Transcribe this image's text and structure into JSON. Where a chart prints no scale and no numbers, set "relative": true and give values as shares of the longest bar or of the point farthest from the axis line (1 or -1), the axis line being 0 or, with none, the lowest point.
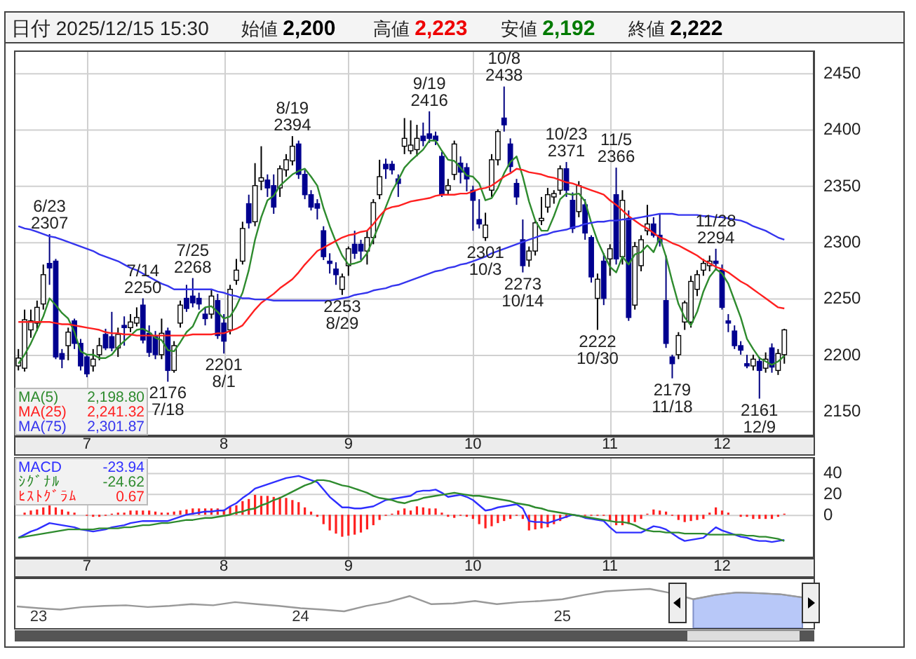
{
  "chart_data": [
    {
      "type": "candlestick",
      "title": "日付 2025/12/15 15:30",
      "categories": [
        null,
        null,
        null,
        null,
        null,
        null,
        null,
        null,
        null,
        null,
        null,
        "7",
        null,
        null,
        null,
        null,
        null,
        null,
        null,
        null,
        null,
        null,
        null,
        null,
        null,
        null,
        null,
        null,
        null,
        null,
        null,
        null,
        null,
        "8",
        null,
        null,
        null,
        null,
        null,
        null,
        null,
        null,
        null,
        null,
        null,
        null,
        null,
        null,
        null,
        null,
        null,
        null,
        null,
        "9",
        null,
        null,
        null,
        null,
        null,
        null,
        null,
        null,
        null,
        null,
        null,
        null,
        null,
        null,
        null,
        null,
        null,
        null,
        null,
        "10",
        null,
        null,
        null,
        null,
        null,
        null,
        null,
        null,
        null,
        null,
        null,
        null,
        null,
        null,
        null,
        null,
        null,
        null,
        null,
        null,
        null,
        "11",
        null,
        null,
        null,
        null,
        null,
        null,
        null,
        null,
        null,
        null,
        null,
        null,
        null,
        null,
        null,
        null,
        null,
        "12",
        null,
        null,
        null,
        null,
        null,
        null,
        null,
        null,
        null,
        null
      ],
      "ohlc": [
        [
          2190,
          2205,
          2186,
          2197
        ],
        [
          2188,
          2240,
          2185,
          2231
        ],
        [
          2222,
          2240,
          2215,
          2230
        ],
        [
          2228,
          2248,
          2221,
          2242
        ],
        [
          2245,
          2280,
          2240,
          2271
        ],
        [
          2281,
          2307,
          2262,
          2277
        ],
        [
          2283,
          2285,
          2196,
          2198
        ],
        [
          2201,
          2205,
          2188,
          2196
        ],
        [
          2208,
          2224,
          2195,
          2220
        ],
        [
          2230,
          2232,
          2205,
          2210
        ],
        [
          2210,
          2214,
          2186,
          2190
        ],
        [
          2198,
          2200,
          2180,
          2183
        ],
        [
          2190,
          2205,
          2185,
          2196
        ],
        [
          2200,
          2215,
          2195,
          2208
        ],
        [
          2218,
          2223,
          2204,
          2206
        ],
        [
          2216,
          2238,
          2203,
          2206
        ],
        [
          2206,
          2224,
          2198,
          2218
        ],
        [
          2226,
          2234,
          2208,
          2224
        ],
        [
          2224,
          2236,
          2220,
          2229
        ],
        [
          2228,
          2242,
          2225,
          2233
        ],
        [
          2244,
          2250,
          2210,
          2213
        ],
        [
          2219,
          2226,
          2198,
          2202
        ],
        [
          2216,
          2221,
          2196,
          2200
        ],
        [
          2200,
          2232,
          2196,
          2219
        ],
        [
          2221,
          2224,
          2176,
          2186
        ],
        [
          2186,
          2212,
          2184,
          2208
        ],
        [
          2228,
          2248,
          2224,
          2244
        ],
        [
          2250,
          2262,
          2238,
          2241
        ],
        [
          2252,
          2268,
          2242,
          2246
        ],
        [
          2250,
          2255,
          2240,
          2245
        ],
        [
          2236,
          2242,
          2226,
          2232
        ],
        [
          2236,
          2258,
          2232,
          2252
        ],
        [
          2248,
          2254,
          2214,
          2217
        ],
        [
          2228,
          2236,
          2201,
          2212
        ],
        [
          2222,
          2262,
          2218,
          2258
        ],
        [
          2266,
          2285,
          2262,
          2275
        ],
        [
          2283,
          2318,
          2280,
          2312
        ],
        [
          2334,
          2342,
          2312,
          2317
        ],
        [
          2318,
          2370,
          2314,
          2350
        ],
        [
          2354,
          2385,
          2346,
          2357
        ],
        [
          2355,
          2360,
          2340,
          2348
        ],
        [
          2350,
          2360,
          2325,
          2331
        ],
        [
          2348,
          2368,
          2340,
          2365
        ],
        [
          2364,
          2378,
          2358,
          2373
        ],
        [
          2372,
          2394,
          2368,
          2385
        ],
        [
          2387,
          2390,
          2356,
          2360
        ],
        [
          2360,
          2364,
          2338,
          2342
        ],
        [
          2342,
          2346,
          2328,
          2331
        ],
        [
          2334,
          2338,
          2320,
          2330
        ],
        [
          2310,
          2314,
          2284,
          2287
        ],
        [
          2283,
          2290,
          2272,
          2281
        ],
        [
          2276,
          2282,
          2262,
          2271
        ],
        [
          2258,
          2272,
          2253,
          2269
        ],
        [
          2279,
          2296,
          2270,
          2294
        ],
        [
          2298,
          2310,
          2285,
          2290
        ],
        [
          2298,
          2302,
          2284,
          2292
        ],
        [
          2292,
          2310,
          2280,
          2304
        ],
        [
          2304,
          2338,
          2298,
          2335
        ],
        [
          2342,
          2373,
          2338,
          2358
        ],
        [
          2369,
          2374,
          2356,
          2365
        ],
        [
          2369,
          2372,
          2360,
          2364
        ],
        [
          2356,
          2360,
          2340,
          2352
        ],
        [
          2385,
          2410,
          2378,
          2392
        ],
        [
          2381,
          2408,
          2378,
          2386
        ],
        [
          2382,
          2404,
          2376,
          2392
        ],
        [
          2394,
          2406,
          2385,
          2390
        ],
        [
          2396,
          2416,
          2388,
          2392
        ],
        [
          2394,
          2398,
          2386,
          2390
        ],
        [
          2376,
          2380,
          2340,
          2342
        ],
        [
          2346,
          2356,
          2342,
          2350
        ],
        [
          2360,
          2390,
          2355,
          2387
        ],
        [
          2370,
          2376,
          2352,
          2362
        ],
        [
          2366,
          2370,
          2345,
          2356
        ],
        [
          2346,
          2350,
          2310,
          2337
        ],
        [
          2320,
          2338,
          2312,
          2316
        ],
        [
          2304,
          2326,
          2301,
          2315
        ],
        [
          2346,
          2378,
          2340,
          2373
        ],
        [
          2373,
          2400,
          2368,
          2398
        ],
        [
          2410,
          2438,
          2398,
          2404
        ],
        [
          2387,
          2392,
          2362,
          2367
        ],
        [
          2352,
          2356,
          2333,
          2340
        ],
        [
          2302,
          2320,
          2273,
          2279
        ],
        [
          2284,
          2296,
          2278,
          2292
        ],
        [
          2292,
          2320,
          2288,
          2317
        ],
        [
          2319,
          2340,
          2315,
          2321
        ],
        [
          2331,
          2348,
          2326,
          2342
        ],
        [
          2340,
          2346,
          2334,
          2343
        ],
        [
          2346,
          2368,
          2342,
          2365
        ],
        [
          2365,
          2371,
          2340,
          2346
        ],
        [
          2337,
          2344,
          2308,
          2312
        ],
        [
          2327,
          2354,
          2322,
          2350
        ],
        [
          2333,
          2338,
          2302,
          2308
        ],
        [
          2304,
          2306,
          2264,
          2269
        ],
        [
          2250,
          2272,
          2222,
          2267
        ],
        [
          2283,
          2290,
          2244,
          2250
        ],
        [
          2285,
          2298,
          2270,
          2294
        ],
        [
          2342,
          2366,
          2280,
          2285
        ],
        [
          2287,
          2346,
          2280,
          2337
        ],
        [
          2321,
          2328,
          2230,
          2233
        ],
        [
          2244,
          2300,
          2240,
          2296
        ],
        [
          2279,
          2306,
          2274,
          2302
        ],
        [
          2310,
          2333,
          2306,
          2316
        ],
        [
          2316,
          2322,
          2304,
          2306
        ],
        [
          2306,
          2325,
          2296,
          2300
        ],
        [
          2248,
          2288,
          2206,
          2210
        ],
        [
          2198,
          2200,
          2179,
          2192
        ],
        [
          2200,
          2220,
          2196,
          2217
        ],
        [
          2229,
          2248,
          2222,
          2246
        ],
        [
          2229,
          2270,
          2224,
          2265
        ],
        [
          2258,
          2275,
          2252,
          2271
        ],
        [
          2275,
          2285,
          2270,
          2281
        ],
        [
          2279,
          2288,
          2274,
          2283
        ],
        [
          2283,
          2294,
          2276,
          2281
        ],
        [
          2275,
          2280,
          2240,
          2242
        ],
        [
          2230,
          2236,
          2220,
          2228
        ],
        [
          2221,
          2226,
          2205,
          2208
        ],
        [
          2208,
          2212,
          2200,
          2204
        ],
        [
          2192,
          2200,
          2188,
          2190
        ],
        [
          2190,
          2200,
          2186,
          2196
        ],
        [
          2194,
          2198,
          2161,
          2186
        ],
        [
          2188,
          2202,
          2184,
          2196
        ],
        [
          2206,
          2210,
          2184,
          2189
        ],
        [
          2186,
          2205,
          2182,
          2201
        ],
        [
          2200,
          2223,
          2192,
          2222
        ]
      ],
      "series": [
        {
          "name": "MA(5) 2,198.80",
          "type": "line",
          "color": "#2e8b2e",
          "values": [
            2192,
            2200,
            2210,
            2222,
            2234,
            2250,
            2244,
            2237,
            2232,
            2220,
            2203,
            2200,
            2200,
            2197,
            2197,
            2200,
            2207,
            2212,
            2217,
            2222,
            2223,
            2220,
            2215,
            2213,
            2204,
            2203,
            2211,
            2220,
            2225,
            2237,
            2242,
            2243,
            2238,
            2232,
            2234,
            2243,
            2255,
            2275,
            2302,
            2322,
            2337,
            2341,
            2350,
            2355,
            2360,
            2363,
            2365,
            2358,
            2350,
            2330,
            2314,
            2300,
            2288,
            2280,
            2281,
            2283,
            2290,
            2303,
            2316,
            2331,
            2345,
            2355,
            2366,
            2372,
            2377,
            2382,
            2390,
            2390,
            2381,
            2373,
            2372,
            2366,
            2359,
            2358,
            2352,
            2337,
            2339,
            2348,
            2361,
            2371,
            2376,
            2358,
            2336,
            2319,
            2310,
            2310,
            2323,
            2338,
            2343,
            2342,
            2343,
            2336,
            2317,
            2301,
            2289,
            2278,
            2273,
            2287,
            2280,
            2289,
            2291,
            2297,
            2291,
            2304,
            2287,
            2265,
            2245,
            2233,
            2226,
            2238,
            2256,
            2269,
            2276,
            2272,
            2263,
            2248,
            2233,
            2214,
            2205,
            2197,
            2194,
            2191,
            2194,
            2199
          ]
        },
        {
          "name": "MA(25) 2,241.32",
          "type": "line",
          "color": "#ff2020",
          "values": [
            2229,
            2229,
            2229,
            2229,
            2229,
            2229,
            2228,
            2227,
            2227,
            2226,
            2225,
            2224,
            2223,
            2222,
            2220,
            2219,
            2219,
            2218,
            2218,
            2217,
            2217,
            2217,
            2217,
            2217,
            2217,
            2217,
            2217,
            2217,
            2218,
            2218,
            2218,
            2218,
            2219,
            2219,
            2221,
            2223,
            2226,
            2233,
            2240,
            2246,
            2250,
            2254,
            2259,
            2263,
            2267,
            2273,
            2280,
            2286,
            2292,
            2295,
            2298,
            2301,
            2304,
            2306,
            2307,
            2309,
            2310,
            2316,
            2323,
            2329,
            2331,
            2332,
            2334,
            2336,
            2337,
            2338,
            2339,
            2341,
            2342,
            2342,
            2342,
            2343,
            2343,
            2345,
            2347,
            2348,
            2350,
            2354,
            2358,
            2361,
            2365,
            2364,
            2362,
            2361,
            2360,
            2358,
            2357,
            2355,
            2353,
            2352,
            2350,
            2348,
            2346,
            2344,
            2342,
            2337,
            2333,
            2328,
            2323,
            2319,
            2315,
            2312,
            2308,
            2304,
            2302,
            2299,
            2297,
            2294,
            2291,
            2288,
            2284,
            2281,
            2278,
            2276,
            2273,
            2269,
            2265,
            2262,
            2258,
            2254,
            2250,
            2246,
            2242,
            2241
          ]
        },
        {
          "name": "MA(75) 2,301.87",
          "type": "line",
          "color": "#3535ee",
          "values": [
            2314,
            2312,
            2311,
            2309,
            2307,
            2305,
            2304,
            2302,
            2300,
            2298,
            2296,
            2294,
            2292,
            2289,
            2287,
            2285,
            2283,
            2280,
            2277,
            2275,
            2272,
            2269,
            2266,
            2263,
            2261,
            2258,
            2258,
            2258,
            2258,
            2258,
            2258,
            2258,
            2256,
            2255,
            2253,
            2252,
            2250,
            2250,
            2249,
            2249,
            2249,
            2248,
            2248,
            2248,
            2248,
            2248,
            2248,
            2248,
            2248,
            2248,
            2248,
            2249,
            2250,
            2251,
            2253,
            2254,
            2255,
            2257,
            2258,
            2259,
            2261,
            2262,
            2264,
            2266,
            2268,
            2270,
            2272,
            2274,
            2275,
            2277,
            2278,
            2280,
            2281,
            2283,
            2285,
            2287,
            2290,
            2292,
            2294,
            2296,
            2298,
            2300,
            2302,
            2304,
            2306,
            2307,
            2309,
            2310,
            2311,
            2313,
            2314,
            2316,
            2317,
            2318,
            2318,
            2319,
            2319,
            2320,
            2320,
            2321,
            2322,
            2323,
            2324,
            2325,
            2325,
            2325,
            2324,
            2324,
            2324,
            2324,
            2323,
            2323,
            2322,
            2322,
            2321,
            2320,
            2319,
            2317,
            2314,
            2312,
            2310,
            2307,
            2304,
            2302
          ]
        }
      ],
      "ylim": [
        2129,
        2470
      ],
      "yticks": [
        2150,
        2200,
        2250,
        2300,
        2350,
        2400,
        2450
      ],
      "grid": true,
      "annotations": [
        "始値 2,200",
        "高値 2,223",
        "安値 2,192",
        "終値 2,222",
        {
          "text": "6/23\n2307",
          "y": 2307
        },
        {
          "text": "7/14\n2250",
          "y": 2250
        },
        {
          "text": "7/25\n2268",
          "y": 2268
        },
        {
          "text": "8/19\n2394",
          "y": 2394
        },
        {
          "text": "9/19\n2416",
          "y": 2416
        },
        {
          "text": "10/8\n2438",
          "y": 2438
        },
        {
          "text": "10/23\n2371",
          "y": 2371
        },
        {
          "text": "11/5\n2366",
          "y": 2366
        },
        {
          "text": "11/28\n2294",
          "y": 2294
        },
        {
          "text": "2176\n7/18",
          "y": 2176
        },
        {
          "text": "2201\n8/1",
          "y": 2201
        },
        {
          "text": "2253\n8/29",
          "y": 2253
        },
        {
          "text": "2301\n10/3",
          "y": 2301
        },
        {
          "text": "2273\n10/14",
          "y": 2273
        },
        {
          "text": "2222\n10/30",
          "y": 2222
        },
        {
          "text": "2179\n11/18",
          "y": 2179
        },
        {
          "text": "2161\n12/9",
          "y": 2161
        }
      ]
    },
    {
      "type": "line",
      "categories": [
        null,
        null,
        null,
        null,
        null,
        null,
        null,
        null,
        null,
        null,
        null,
        "7",
        null,
        null,
        null,
        null,
        null,
        null,
        null,
        null,
        null,
        null,
        null,
        null,
        null,
        null,
        null,
        null,
        null,
        null,
        null,
        null,
        null,
        "8",
        null,
        null,
        null,
        null,
        null,
        null,
        null,
        null,
        null,
        null,
        null,
        null,
        null,
        null,
        null,
        null,
        null,
        null,
        null,
        "9",
        null,
        null,
        null,
        null,
        null,
        null,
        null,
        null,
        null,
        null,
        null,
        null,
        null,
        null,
        null,
        null,
        null,
        null,
        null,
        "10",
        null,
        null,
        null,
        null,
        null,
        null,
        null,
        null,
        null,
        null,
        null,
        null,
        null,
        null,
        null,
        null,
        null,
        null,
        null,
        null,
        null,
        "11",
        null,
        null,
        null,
        null,
        null,
        null,
        null,
        null,
        null,
        null,
        null,
        null,
        null,
        null,
        null,
        null,
        null,
        "12",
        null,
        null,
        null,
        null,
        null,
        null,
        null,
        null,
        null,
        null
      ],
      "series": [
        {
          "name": "MACD -23.94",
          "type": "line",
          "color": "#2f2fff",
          "values": [
            -22,
            -19,
            -16,
            -14,
            -11,
            -8,
            -9,
            -10,
            -11,
            -12,
            -14,
            -15,
            -16,
            -15,
            -14,
            -12,
            -11,
            -10,
            -8,
            -7,
            -6,
            -6,
            -6,
            -6,
            -6,
            -4,
            -2,
            0,
            1,
            2,
            3,
            3,
            4,
            4,
            8,
            11,
            16,
            20,
            25,
            27,
            29,
            31,
            33,
            35,
            36,
            37,
            35,
            33,
            31,
            24,
            17,
            12,
            7,
            7,
            6,
            6,
            7,
            8,
            11,
            14,
            15,
            16,
            17,
            18,
            22,
            23,
            23,
            24,
            21,
            17,
            18,
            19,
            17,
            14,
            9,
            4,
            5,
            7,
            8,
            9,
            10,
            6,
            -6,
            -7,
            -7,
            -8,
            -6,
            -4,
            -2,
            0,
            -1,
            -3,
            -4,
            -5,
            -6,
            -12,
            -17,
            -17,
            -17,
            -17,
            -17,
            -14,
            -11,
            -12,
            -14,
            -18,
            -22,
            -25,
            -24,
            -23,
            -22,
            -17,
            -12,
            -15,
            -17,
            -19,
            -21,
            -22,
            -24,
            -25,
            -25,
            -26,
            -25,
            -24
          ]
        },
        {
          "name": "ｼｸﾞﾅﾙ -24.62",
          "type": "line",
          "color": "#2e8b2e",
          "values": [
            -22,
            -21,
            -20,
            -19,
            -18,
            -17,
            -16,
            -15,
            -14,
            -14,
            -14,
            -14,
            -14,
            -13,
            -13,
            -13,
            -13,
            -12,
            -12,
            -11,
            -10,
            -10,
            -9,
            -8,
            -8,
            -7,
            -6,
            -5,
            -5,
            -4,
            -3,
            -3,
            -2,
            -1,
            0,
            2,
            3,
            5,
            6,
            9,
            11,
            14,
            16,
            19,
            22,
            25,
            28,
            30,
            33,
            33,
            32,
            30,
            28,
            27,
            25,
            23,
            21,
            18,
            16,
            15,
            14,
            12,
            11,
            13,
            14,
            16,
            17,
            18,
            19,
            20,
            21,
            20,
            19,
            18,
            18,
            17,
            16,
            15,
            14,
            13,
            11,
            10,
            9,
            7,
            6,
            4,
            3,
            2,
            1,
            0,
            -1,
            -2,
            -3,
            -4,
            -5,
            -6,
            -7,
            -7,
            -8,
            -10,
            -13,
            -15,
            -16,
            -16,
            -17,
            -17,
            -17,
            -18,
            -18,
            -18,
            -18,
            -19,
            -19,
            -19,
            -19,
            -19,
            -19,
            -20,
            -20,
            -21,
            -21,
            -22,
            -23,
            -25
          ]
        },
        {
          "name": "ﾋｽﾄｸﾞﾗﾑ 0.67",
          "type": "bar",
          "color": "#ff2020",
          "values": [
            0,
            2,
            4,
            5,
            7,
            9,
            7,
            5,
            3,
            2,
            0,
            -1,
            -2,
            -2,
            -1,
            1,
            2,
            2,
            4,
            4,
            4,
            4,
            3,
            2,
            2,
            3,
            4,
            5,
            6,
            6,
            6,
            6,
            6,
            5,
            8,
            9,
            13,
            15,
            19,
            18,
            18,
            17,
            17,
            16,
            14,
            12,
            7,
            3,
            -2,
            -9,
            -15,
            -18,
            -21,
            -20,
            -19,
            -17,
            -14,
            -10,
            -5,
            -1,
            1,
            4,
            6,
            4,
            8,
            7,
            6,
            6,
            2,
            -2,
            -3,
            -1,
            -2,
            -4,
            -9,
            -13,
            -11,
            -8,
            -6,
            -4,
            -1,
            -4,
            -15,
            -14,
            -13,
            -12,
            -9,
            -6,
            -3,
            0,
            0,
            -1,
            -1,
            -1,
            -1,
            -6,
            -10,
            -10,
            -9,
            -7,
            -4,
            1,
            5,
            4,
            3,
            -1,
            -5,
            -7,
            -6,
            -5,
            -4,
            2,
            7,
            4,
            2,
            0,
            -2,
            -2,
            -4,
            -4,
            -4,
            -4,
            -2,
            1
          ]
        }
      ],
      "ylim": [
        -40,
        55
      ],
      "yticks": [
        0,
        20,
        40
      ],
      "grid": true
    },
    {
      "type": "line",
      "relative": true,
      "categories": [
        null,
        "23",
        null,
        null,
        null,
        null,
        null,
        null,
        null,
        null,
        null,
        null,
        null,
        "24",
        null,
        null,
        null,
        null,
        null,
        null,
        null,
        null,
        null,
        null,
        null,
        "25",
        null,
        null,
        null,
        null,
        null,
        null,
        null,
        null,
        null,
        null,
        null
      ],
      "series": [
        {
          "type": "area",
          "color": "#b8c8f8",
          "values": [
            null,
            null,
            null,
            null,
            null,
            null,
            null,
            null,
            null,
            null,
            null,
            null,
            null,
            null,
            null,
            null,
            null,
            null,
            null,
            null,
            null,
            null,
            null,
            null,
            null,
            null,
            null,
            null,
            null,
            null,
            null,
            0.54,
            0.73,
            0.84,
            0.81,
            0.76,
            0.62
          ]
        },
        {
          "type": "line",
          "color": "#999999",
          "values": [
            0.22,
            0.14,
            0.08,
            0.19,
            0.24,
            0.27,
            0.19,
            0.24,
            0.32,
            0.27,
            0.41,
            0.32,
            0.24,
            0.14,
            0.08,
            0,
            0.24,
            0.41,
            0.68,
            0.32,
            0.35,
            0.46,
            0.32,
            0.41,
            0.46,
            0.54,
            0.73,
            0.89,
            0.95,
            1,
            0.81,
            0.54,
            0.73,
            0.84,
            0.81,
            0.76,
            0.62
          ]
        }
      ]
    }
  ]
}
